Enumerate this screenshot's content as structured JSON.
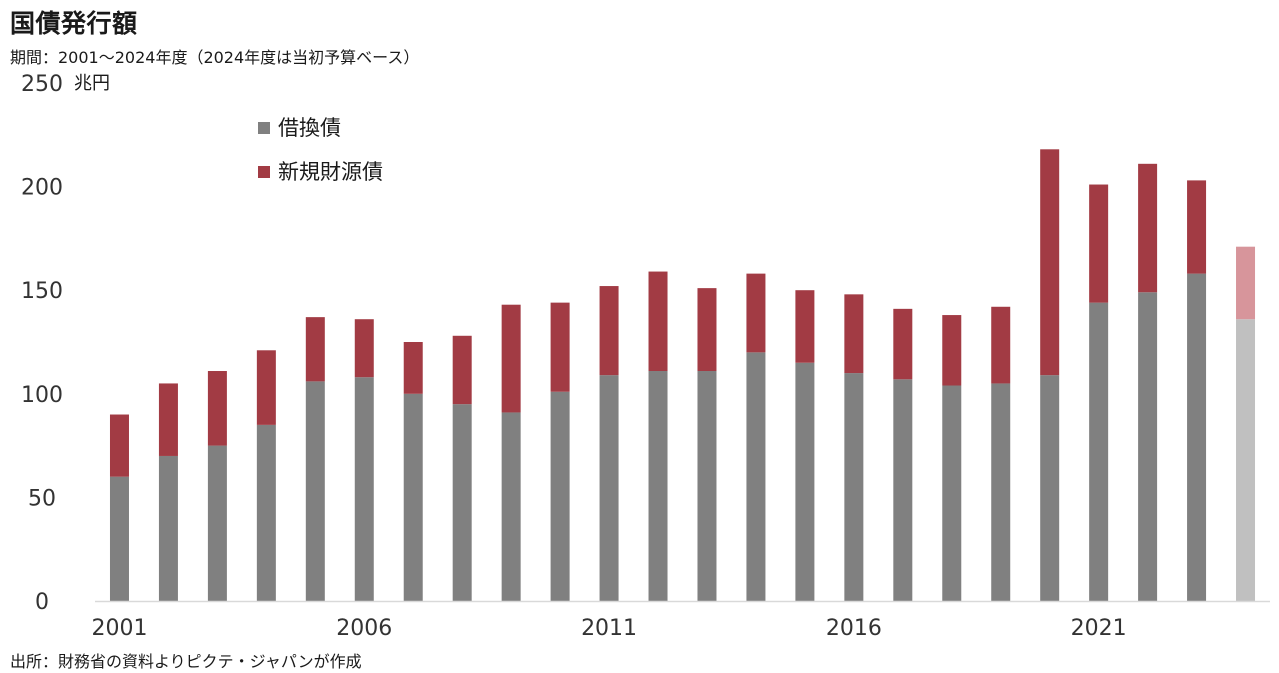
{
  "title": "国債発行額",
  "subtitle": "期間：2001～2024年度（2024年度は当初予算ベース）",
  "source": "出所：財務省の資料よりピクテ・ジャパンが作成",
  "chart_data": {
    "type": "bar",
    "stacked": true,
    "y_unit": "兆円",
    "ylim": [
      0,
      250
    ],
    "y_ticks": [
      "0",
      "50",
      "100",
      "150",
      "200",
      "250"
    ],
    "x_tick_labels": [
      "2001",
      "2006",
      "2011",
      "2016",
      "2021"
    ],
    "categories": [
      "2001",
      "2002",
      "2003",
      "2004",
      "2005",
      "2006",
      "2007",
      "2008",
      "2009",
      "2010",
      "2011",
      "2012",
      "2013",
      "2014",
      "2015",
      "2016",
      "2017",
      "2018",
      "2019",
      "2020",
      "2021",
      "2022",
      "2023",
      "2024"
    ],
    "legend_position": "top-left",
    "grid": false,
    "series": [
      {
        "name": "借換債",
        "color": "#808080",
        "values": [
          60,
          70,
          75,
          85,
          106,
          108,
          100,
          95,
          91,
          101,
          109,
          111,
          111,
          120,
          115,
          110,
          107,
          104,
          105,
          109,
          144,
          149,
          158,
          136
        ]
      },
      {
        "name": "新規財源債",
        "color": "#a23b44",
        "values": [
          30,
          35,
          36,
          36,
          31,
          28,
          25,
          33,
          52,
          43,
          43,
          48,
          40,
          38,
          35,
          38,
          34,
          34,
          37,
          109,
          57,
          62,
          45,
          35
        ]
      }
    ],
    "note": "2024年度は当初予算ベース",
    "estimate_colors": {
      "借換債": "#c0c0c0",
      "新規財源債": "#d7959b"
    }
  }
}
